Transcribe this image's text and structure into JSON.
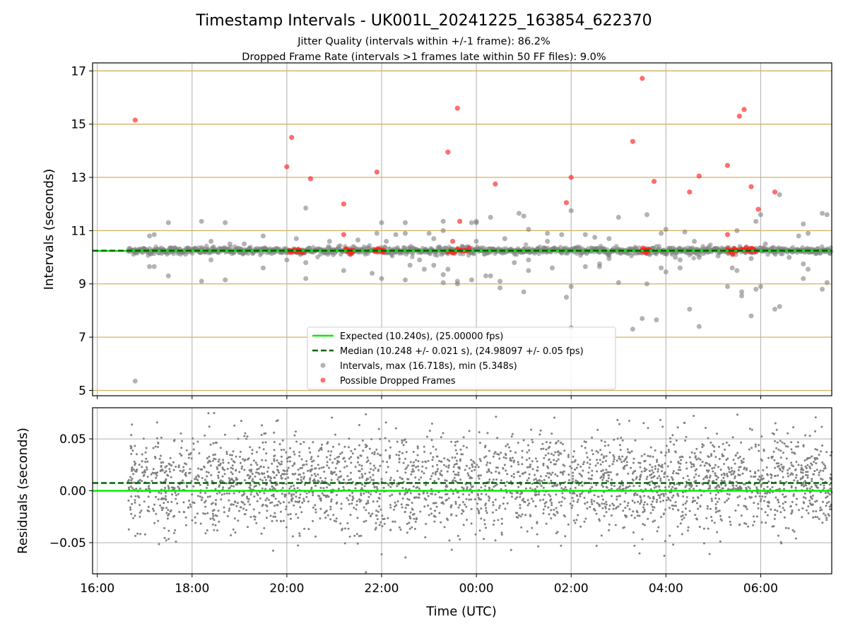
{
  "figure": {
    "title": "Timestamp Intervals - UK001L_20241225_163854_622370",
    "subtitle_1": "Jitter Quality (intervals within +/-1 frame): 86.2%",
    "subtitle_2": "Dropped Frame Rate (intervals >1 frames late within 50 FF files): 9.0%",
    "xlabel": "Time (UTC)"
  },
  "colors": {
    "expected": "#00ee00",
    "median": "#006400",
    "intervals": "#808080",
    "dropped": "#ff2020",
    "hgrid_top": "#d4b060",
    "grid": "#b0b0b0"
  },
  "chart_data": [
    {
      "type": "scatter",
      "ylabel": "Intervals (seconds)",
      "x_unit": "hours since 16:00 UTC (2024-12-25)",
      "xlim": [
        15.9,
        31.5
      ],
      "ylim": [
        4.8,
        17.3
      ],
      "yticks": [
        5,
        7,
        9,
        11,
        13,
        15,
        17
      ],
      "x_ticks": [
        {
          "h": 16,
          "label": "16:00"
        },
        {
          "h": 18,
          "label": "18:00"
        },
        {
          "h": 20,
          "label": "20:00"
        },
        {
          "h": 22,
          "label": "22:00"
        },
        {
          "h": 24,
          "label": "00:00"
        },
        {
          "h": 26,
          "label": "02:00"
        },
        {
          "h": 28,
          "label": "04:00"
        },
        {
          "h": 30,
          "label": "06:00"
        }
      ],
      "grid": true,
      "legend_position": "lower-center",
      "expected_value": 10.24,
      "median_value": 10.248,
      "band_mean": 10.25,
      "band_spread": 0.07,
      "band_x_range": [
        16.65,
        31.5
      ],
      "legend": [
        {
          "key": "expected",
          "label": "Expected (10.240s), (25.00000 fps)"
        },
        {
          "key": "median",
          "label": "Median (10.248 +/- 0.021 s), (24.98097 +/- 0.05 fps)"
        },
        {
          "key": "intervals",
          "label": "Intervals, max (16.718s), min (5.348s)"
        },
        {
          "key": "dropped",
          "label": "Possible Dropped Frames"
        }
      ],
      "outliers": [
        [
          16.8,
          5.35
        ],
        [
          16.8,
          10.3
        ],
        [
          17.1,
          10.8
        ],
        [
          17.2,
          10.85
        ],
        [
          17.1,
          9.65
        ],
        [
          17.2,
          9.65
        ],
        [
          17.5,
          11.3
        ],
        [
          17.5,
          9.3
        ],
        [
          18.2,
          11.35
        ],
        [
          18.2,
          9.1
        ],
        [
          18.4,
          10.6
        ],
        [
          18.4,
          9.9
        ],
        [
          18.7,
          11.3
        ],
        [
          18.7,
          9.15
        ],
        [
          18.8,
          10.5
        ],
        [
          19.5,
          10.8
        ],
        [
          19.5,
          9.6
        ],
        [
          19.1,
          10.5
        ],
        [
          20.0,
          9.9
        ],
        [
          20.2,
          10.7
        ],
        [
          20.4,
          9.8
        ],
        [
          20.4,
          11.85
        ],
        [
          20.4,
          9.2
        ],
        [
          20.9,
          10.6
        ],
        [
          21.2,
          9.5
        ],
        [
          21.4,
          10.4
        ],
        [
          21.5,
          10.65
        ],
        [
          21.8,
          9.4
        ],
        [
          21.9,
          10.9
        ],
        [
          22.0,
          11.3
        ],
        [
          22.0,
          9.2
        ],
        [
          22.1,
          10.6
        ],
        [
          22.3,
          10.85
        ],
        [
          22.5,
          9.15
        ],
        [
          22.5,
          10.9
        ],
        [
          22.5,
          11.3
        ],
        [
          22.6,
          9.7
        ],
        [
          22.8,
          9.9
        ],
        [
          22.9,
          9.55
        ],
        [
          23.0,
          10.9
        ],
        [
          23.1,
          9.7
        ],
        [
          23.1,
          10.7
        ],
        [
          23.3,
          11.0
        ],
        [
          23.3,
          11.35
        ],
        [
          23.3,
          9.35
        ],
        [
          23.3,
          9.05
        ],
        [
          23.4,
          9.55
        ],
        [
          23.6,
          9.1
        ],
        [
          23.6,
          9.0
        ],
        [
          23.7,
          10.4
        ],
        [
          23.9,
          9.15
        ],
        [
          23.9,
          11.3
        ],
        [
          24.0,
          11.35
        ],
        [
          24.0,
          11.3
        ],
        [
          24.0,
          10.6
        ],
        [
          24.2,
          9.3
        ],
        [
          24.3,
          11.5
        ],
        [
          24.3,
          9.3
        ],
        [
          24.5,
          9.1
        ],
        [
          24.5,
          8.85
        ],
        [
          24.6,
          10.7
        ],
        [
          24.8,
          9.8
        ],
        [
          24.9,
          11.65
        ],
        [
          25.0,
          11.55
        ],
        [
          25.0,
          10.2
        ],
        [
          25.0,
          8.7
        ],
        [
          25.1,
          9.9
        ],
        [
          25.1,
          11.05
        ],
        [
          25.1,
          9.5
        ],
        [
          25.5,
          10.6
        ],
        [
          25.5,
          10.9
        ],
        [
          25.6,
          9.6
        ],
        [
          25.8,
          10.85
        ],
        [
          25.9,
          8.5
        ],
        [
          26.0,
          11.75
        ],
        [
          26.0,
          8.9
        ],
        [
          26.0,
          7.35
        ],
        [
          26.3,
          10.85
        ],
        [
          26.3,
          9.65
        ],
        [
          26.5,
          10.75
        ],
        [
          26.6,
          9.75
        ],
        [
          26.6,
          9.65
        ],
        [
          26.8,
          9.95
        ],
        [
          26.8,
          10.7
        ],
        [
          27.0,
          9.05
        ],
        [
          27.0,
          11.5
        ],
        [
          27.3,
          7.3
        ],
        [
          27.5,
          7.7
        ],
        [
          27.6,
          9.0
        ],
        [
          27.6,
          11.6
        ],
        [
          27.8,
          10.4
        ],
        [
          27.8,
          7.65
        ],
        [
          27.9,
          10.9
        ],
        [
          27.9,
          9.6
        ],
        [
          28.0,
          11.05
        ],
        [
          28.0,
          9.45
        ],
        [
          28.2,
          10.0
        ],
        [
          28.3,
          9.9
        ],
        [
          28.3,
          9.6
        ],
        [
          28.4,
          10.95
        ],
        [
          28.5,
          8.05
        ],
        [
          28.6,
          10.6
        ],
        [
          28.7,
          7.4
        ],
        [
          28.7,
          10.0
        ],
        [
          29.1,
          10.05
        ],
        [
          29.3,
          8.9
        ],
        [
          29.4,
          9.6
        ],
        [
          29.5,
          11.0
        ],
        [
          29.5,
          9.5
        ],
        [
          29.6,
          8.55
        ],
        [
          29.6,
          8.7
        ],
        [
          29.8,
          9.95
        ],
        [
          29.8,
          7.8
        ],
        [
          29.9,
          11.35
        ],
        [
          29.9,
          8.8
        ],
        [
          30.0,
          8.9
        ],
        [
          30.0,
          11.6
        ],
        [
          30.1,
          10.5
        ],
        [
          30.3,
          8.05
        ],
        [
          30.4,
          8.15
        ],
        [
          30.4,
          12.35
        ],
        [
          30.6,
          10.0
        ],
        [
          30.8,
          10.8
        ],
        [
          30.9,
          11.25
        ],
        [
          30.9,
          9.75
        ],
        [
          30.9,
          9.2
        ],
        [
          31.0,
          10.9
        ],
        [
          31.0,
          9.55
        ],
        [
          31.3,
          11.65
        ],
        [
          31.4,
          11.6
        ],
        [
          31.4,
          9.05
        ],
        [
          31.3,
          8.8
        ]
      ],
      "dropped_clusters": [
        [
          20.05,
          20.35
        ],
        [
          21.25,
          21.4
        ],
        [
          21.85,
          22.05
        ],
        [
          23.4,
          23.85
        ],
        [
          27.5,
          27.65
        ],
        [
          29.3,
          29.5
        ],
        [
          29.6,
          29.9
        ]
      ],
      "dropped_outliers": [
        [
          16.8,
          15.15
        ],
        [
          20.0,
          13.4
        ],
        [
          20.1,
          14.5
        ],
        [
          20.5,
          12.95
        ],
        [
          21.2,
          12.0
        ],
        [
          21.2,
          10.85
        ],
        [
          21.9,
          13.2
        ],
        [
          23.4,
          13.95
        ],
        [
          23.5,
          10.6
        ],
        [
          23.6,
          15.6
        ],
        [
          23.65,
          11.35
        ],
        [
          24.4,
          12.75
        ],
        [
          25.9,
          12.05
        ],
        [
          26.0,
          13.0
        ],
        [
          27.3,
          14.35
        ],
        [
          27.5,
          16.72
        ],
        [
          27.75,
          12.85
        ],
        [
          28.5,
          12.45
        ],
        [
          28.7,
          13.05
        ],
        [
          29.3,
          13.45
        ],
        [
          29.3,
          10.85
        ],
        [
          29.55,
          15.3
        ],
        [
          29.65,
          15.55
        ],
        [
          29.8,
          12.65
        ],
        [
          29.95,
          11.8
        ],
        [
          30.3,
          12.45
        ]
      ]
    },
    {
      "type": "scatter",
      "ylabel": "Residuals (seconds)",
      "xlim": [
        15.9,
        31.5
      ],
      "ylim": [
        -0.08,
        0.08
      ],
      "yticks": [
        {
          "v": -0.05,
          "label": "−0.05"
        },
        {
          "v": 0.0,
          "label": "0.00"
        },
        {
          "v": 0.05,
          "label": "0.05"
        }
      ],
      "expected_residual": 0.0,
      "median_residual": 0.0075,
      "residual_mean": 0.008,
      "residual_spread": 0.023,
      "x_range": [
        16.65,
        31.5
      ]
    }
  ]
}
